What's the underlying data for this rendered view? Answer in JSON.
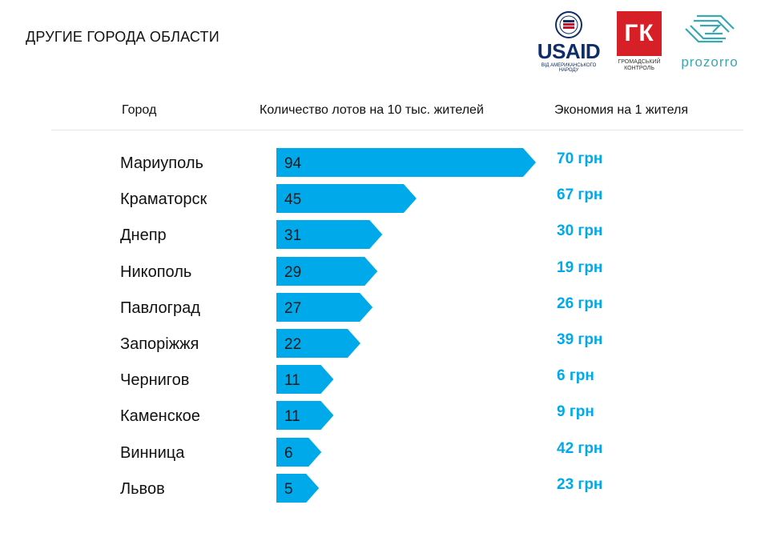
{
  "page_title": "ДРУГИЕ ГОРОДА ОБЛАСТИ",
  "logos": {
    "usaid": {
      "text": "USAID",
      "subtitle": "ВІД АМЕРИКАНСЬКОГО НАРОДУ"
    },
    "gk": {
      "text": "ГК",
      "subtitle_1": "ГРОМАДСЬКИЙ",
      "subtitle_2": "КОНТРОЛЬ"
    },
    "prozorro": {
      "text": "prozorro"
    }
  },
  "colors": {
    "bar": "#00aaea",
    "economy_text": "#00a8ec",
    "gk_red": "#d61f26",
    "usaid_blue": "#0f2d69"
  },
  "chart_data": {
    "type": "bar",
    "orientation": "horizontal",
    "headers": {
      "city": "Город",
      "lots": "Количество лотов на 10 тыс. жителей",
      "economy": "Экономия на 1 жителя"
    },
    "rows": [
      {
        "city": "Мариуполь",
        "value": 94,
        "economy": "70 грн"
      },
      {
        "city": "Краматорск",
        "value": 45,
        "economy": "67 грн"
      },
      {
        "city": "Днепр",
        "value": 31,
        "economy": "30 грн"
      },
      {
        "city": "Никополь",
        "value": 29,
        "economy": "19 грн"
      },
      {
        "city": "Павлоград",
        "value": 27,
        "economy": "26 грн"
      },
      {
        "city": "Запоріжжя",
        "value": 22,
        "economy": "39 грн"
      },
      {
        "city": "Чернигов",
        "value": 11,
        "economy": "6 грн"
      },
      {
        "city": "Каменское",
        "value": 11,
        "economy": "9 грн"
      },
      {
        "city": "Винница",
        "value": 6,
        "economy": "42 грн"
      },
      {
        "city": "Львов",
        "value": 5,
        "economy": "23 грн"
      }
    ]
  }
}
